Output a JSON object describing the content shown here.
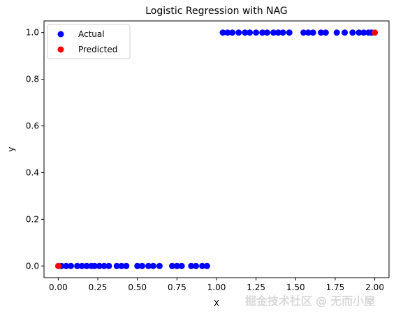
{
  "chart_data": {
    "type": "scatter",
    "title": "Logistic Regression with NAG",
    "xlabel": "X",
    "ylabel": "y",
    "xlim": [
      -0.09,
      2.09
    ],
    "ylim": [
      -0.05,
      1.05
    ],
    "x_ticks": [
      {
        "value": 0.0,
        "label": "0.00"
      },
      {
        "value": 0.25,
        "label": "0.25"
      },
      {
        "value": 0.5,
        "label": "0.50"
      },
      {
        "value": 0.75,
        "label": "0.75"
      },
      {
        "value": 1.0,
        "label": "1.00"
      },
      {
        "value": 1.25,
        "label": "1.25"
      },
      {
        "value": 1.5,
        "label": "1.50"
      },
      {
        "value": 1.75,
        "label": "1.75"
      },
      {
        "value": 2.0,
        "label": "2.00"
      }
    ],
    "y_ticks": [
      {
        "value": 0.0,
        "label": "0.0"
      },
      {
        "value": 0.2,
        "label": "0.2"
      },
      {
        "value": 0.4,
        "label": "0.4"
      },
      {
        "value": 0.6,
        "label": "0.6"
      },
      {
        "value": 0.8,
        "label": "0.8"
      },
      {
        "value": 1.0,
        "label": "1.0"
      }
    ],
    "grid": false,
    "legend_position": "top-left",
    "series": [
      {
        "name": "Actual",
        "color": "#0000ff",
        "points": [
          [
            0.02,
            0
          ],
          [
            0.05,
            0
          ],
          [
            0.08,
            0
          ],
          [
            0.12,
            0
          ],
          [
            0.15,
            0
          ],
          [
            0.18,
            0
          ],
          [
            0.21,
            0
          ],
          [
            0.23,
            0
          ],
          [
            0.26,
            0
          ],
          [
            0.29,
            0
          ],
          [
            0.32,
            0
          ],
          [
            0.37,
            0
          ],
          [
            0.4,
            0
          ],
          [
            0.43,
            0
          ],
          [
            0.5,
            0
          ],
          [
            0.53,
            0
          ],
          [
            0.57,
            0
          ],
          [
            0.6,
            0
          ],
          [
            0.64,
            0
          ],
          [
            0.72,
            0
          ],
          [
            0.75,
            0
          ],
          [
            0.78,
            0
          ],
          [
            0.84,
            0
          ],
          [
            0.87,
            0
          ],
          [
            0.91,
            0
          ],
          [
            0.94,
            0
          ],
          [
            1.04,
            1
          ],
          [
            1.07,
            1
          ],
          [
            1.1,
            1
          ],
          [
            1.14,
            1
          ],
          [
            1.18,
            1
          ],
          [
            1.21,
            1
          ],
          [
            1.25,
            1
          ],
          [
            1.29,
            1
          ],
          [
            1.32,
            1
          ],
          [
            1.36,
            1
          ],
          [
            1.39,
            1
          ],
          [
            1.42,
            1
          ],
          [
            1.46,
            1
          ],
          [
            1.55,
            1
          ],
          [
            1.58,
            1
          ],
          [
            1.61,
            1
          ],
          [
            1.66,
            1
          ],
          [
            1.69,
            1
          ],
          [
            1.76,
            1
          ],
          [
            1.81,
            1
          ],
          [
            1.86,
            1
          ],
          [
            1.9,
            1
          ],
          [
            1.93,
            1
          ],
          [
            1.96,
            1
          ],
          [
            1.98,
            1
          ]
        ]
      },
      {
        "name": "Predicted",
        "color": "#ff0000",
        "points": [
          [
            0.0,
            0
          ],
          [
            2.0,
            1
          ]
        ]
      }
    ],
    "watermark": "掘金技术社区 @ 无而小屋"
  }
}
